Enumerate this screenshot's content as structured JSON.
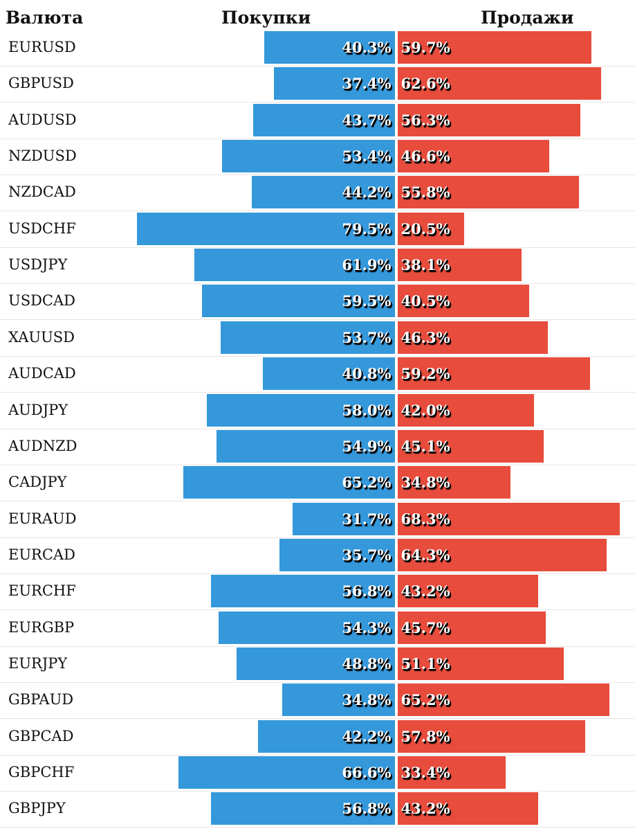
{
  "header": {
    "currency": "Валюта",
    "buy": "Покупки",
    "sell": "Продажи"
  },
  "colors": {
    "buy": "#3498db",
    "sell": "#e74c3c"
  },
  "chart_data": {
    "type": "bar",
    "orientation": "horizontal-diverging",
    "categories": [
      "EURUSD",
      "GBPUSD",
      "AUDUSD",
      "NZDUSD",
      "NZDCAD",
      "USDCHF",
      "USDJPY",
      "USDCAD",
      "XAUUSD",
      "AUDCAD",
      "AUDJPY",
      "AUDNZD",
      "CADJPY",
      "EURAUD",
      "EURCAD",
      "EURCHF",
      "EURGBP",
      "EURJPY",
      "GBPAUD",
      "GBPCAD",
      "GBPCHF",
      "GBPJPY"
    ],
    "series": [
      {
        "name": "Покупки",
        "values": [
          40.3,
          37.4,
          43.7,
          53.4,
          44.2,
          79.5,
          61.9,
          59.5,
          53.7,
          40.8,
          58.0,
          54.9,
          65.2,
          31.7,
          35.7,
          56.8,
          54.3,
          48.8,
          34.8,
          42.2,
          66.6,
          56.8
        ],
        "labels": [
          "40.3%",
          "37.4%",
          "43.7%",
          "53.4%",
          "44.2%",
          "79.5%",
          "61.9%",
          "59.5%",
          "53.7%",
          "40.8%",
          "58.0%",
          "54.9%",
          "65.2%",
          "31.7%",
          "35.7%",
          "56.8%",
          "54.3%",
          "48.8%",
          "34.8%",
          "42.2%",
          "66.6%",
          "56.8%"
        ]
      },
      {
        "name": "Продажи",
        "values": [
          59.7,
          62.6,
          56.3,
          46.6,
          55.8,
          20.5,
          38.1,
          40.5,
          46.3,
          59.2,
          42.0,
          45.1,
          34.8,
          68.3,
          64.3,
          43.2,
          45.7,
          51.1,
          65.2,
          57.8,
          33.4,
          43.2
        ],
        "labels": [
          "59.7%",
          "62.6%",
          "56.3%",
          "46.6%",
          "55.8%",
          "20.5%",
          "38.1%",
          "40.5%",
          "46.3%",
          "59.2%",
          "42.0%",
          "45.1%",
          "34.8%",
          "68.3%",
          "64.3%",
          "43.2%",
          "45.7%",
          "51.1%",
          "65.2%",
          "57.8%",
          "33.4%",
          "43.2%"
        ]
      }
    ],
    "xlim": [
      0,
      100
    ],
    "xlabel": "",
    "ylabel": ""
  }
}
